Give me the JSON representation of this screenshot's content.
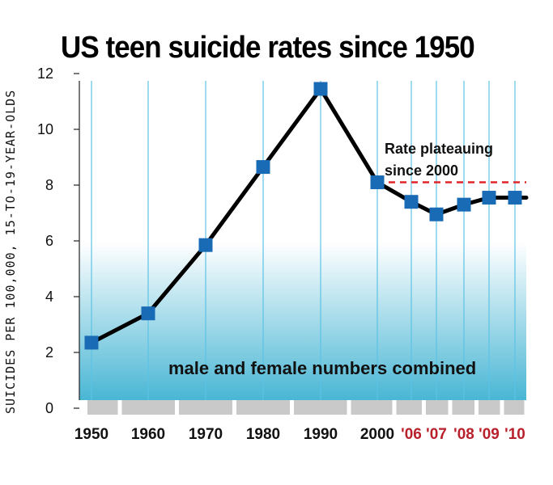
{
  "title": "US teen suicide rates since 1950",
  "note": "male and female numbers combined",
  "annotation": [
    "Rate plateauing",
    "since 2000"
  ],
  "colors": {
    "line": "#000000",
    "marker": "#1a6bb5",
    "gridline": "#5bc3e6",
    "plateau": "#e0262b",
    "recent_year_label": "#b8202b",
    "band": "#c9c9c9",
    "fill_top": "#ffffff",
    "fill_bottom": "#49b6d4"
  },
  "chart_data": {
    "type": "line",
    "ylabel": "SUICIDES PER 100,000, 15-TO-19-YEAR-OLDS",
    "ylim": [
      0,
      12
    ],
    "yticks": [
      "0",
      "2",
      "4",
      "6",
      "8",
      "10",
      "12"
    ],
    "grid": true,
    "x": [
      "1950",
      "1960",
      "1970",
      "1980",
      "1990",
      "2000",
      "'06",
      "'07",
      "'08",
      "'09",
      "'10"
    ],
    "years": [
      1950,
      1960,
      1970,
      1980,
      1990,
      2000,
      2006,
      2007,
      2008,
      2009,
      2010
    ],
    "values": [
      2.35,
      3.4,
      5.85,
      8.65,
      11.45,
      8.1,
      7.4,
      6.95,
      7.3,
      7.55,
      7.55
    ],
    "recent_labels": [
      "'06",
      "'07",
      "'08",
      "'09",
      "'10"
    ],
    "plateau_value": 8.1
  }
}
